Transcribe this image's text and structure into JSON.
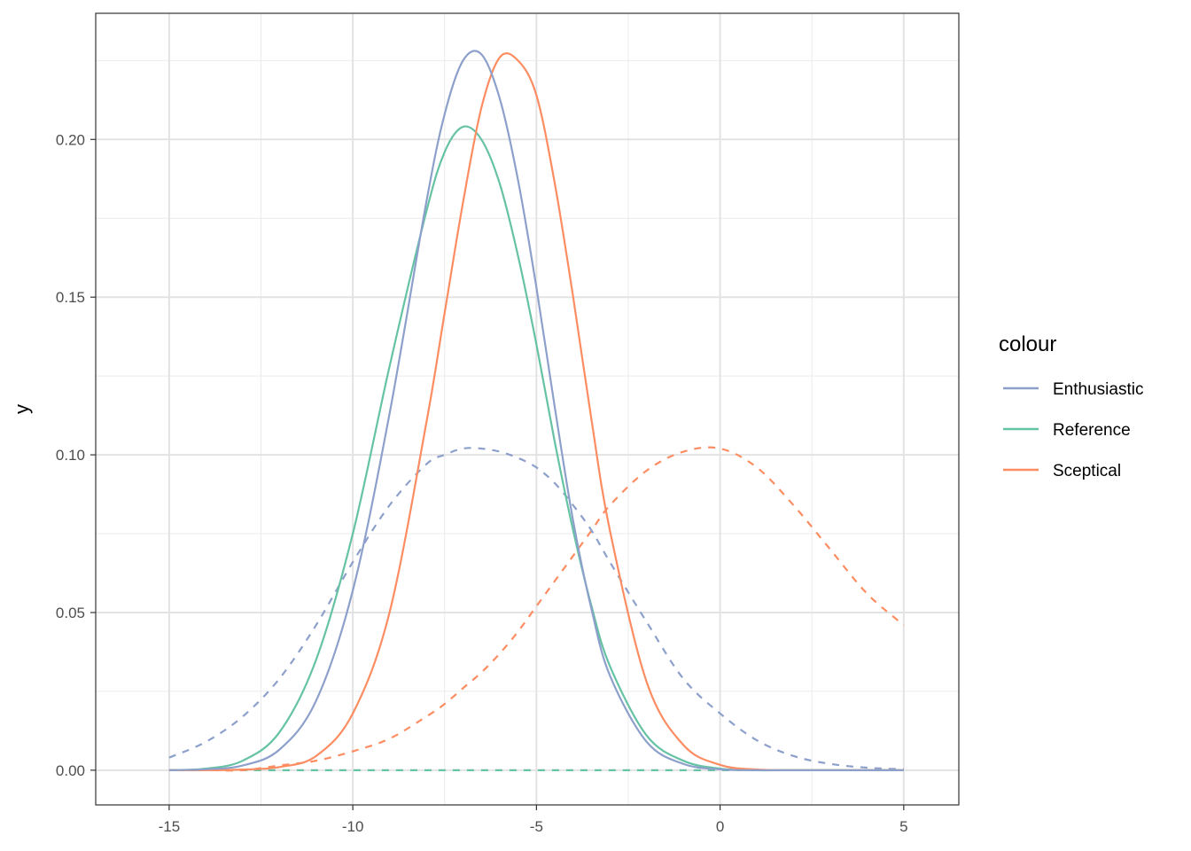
{
  "chart_data": {
    "type": "line",
    "title": "",
    "xlabel": "",
    "ylabel": "y",
    "xlim": [
      -17,
      6.5
    ],
    "ylim": [
      -0.011,
      0.24
    ],
    "x_ticks": [
      -15,
      -10,
      -5,
      0,
      5
    ],
    "x_tick_labels": [
      "-15",
      "-10",
      "-5",
      "0",
      "5"
    ],
    "y_ticks": [
      0,
      0.05,
      0.1,
      0.15,
      0.2
    ],
    "y_tick_labels": [
      "0.00",
      "0.05",
      "0.10",
      "0.15",
      "0.20"
    ],
    "grid": true,
    "legend": {
      "title": "colour",
      "position": "right",
      "entries": [
        {
          "label": "Enthusiastic",
          "color": "#8DA0CB"
        },
        {
          "label": "Reference",
          "color": "#66C2A5"
        },
        {
          "label": "Sceptical",
          "color": "#FC8D62"
        }
      ]
    },
    "x": [
      -15,
      -14,
      -13,
      -12,
      -11,
      -10,
      -9,
      -8,
      -7.5,
      -7,
      -6.5,
      -6,
      -5.5,
      -5,
      -4.5,
      -4,
      -3.5,
      -3,
      -2,
      -1,
      0,
      1,
      2,
      3,
      4,
      5
    ],
    "series": [
      {
        "legend_label": "Enthusiastic",
        "linetype": "solid",
        "color": "#8DA0CB",
        "values": [
          0,
          0.0003,
          0.0015,
          0.0065,
          0.022,
          0.057,
          0.113,
          0.18,
          0.208,
          0.225,
          0.227,
          0.213,
          0.187,
          0.153,
          0.115,
          0.079,
          0.051,
          0.03,
          0.009,
          0.002,
          0.0003,
          0,
          0,
          0,
          0,
          0
        ]
      },
      {
        "legend_label": "Reference",
        "linetype": "solid",
        "color": "#66C2A5",
        "values": [
          0,
          0.0005,
          0.003,
          0.012,
          0.035,
          0.075,
          0.128,
          0.177,
          0.196,
          0.204,
          0.2,
          0.186,
          0.163,
          0.135,
          0.104,
          0.076,
          0.052,
          0.033,
          0.011,
          0.003,
          0.0005,
          0,
          0,
          0,
          0,
          0
        ]
      },
      {
        "legend_label": "Sceptical",
        "linetype": "solid",
        "color": "#FC8D62",
        "values": [
          0,
          0,
          0.0002,
          0.001,
          0.0045,
          0.018,
          0.05,
          0.11,
          0.145,
          0.18,
          0.21,
          0.226,
          0.225,
          0.214,
          0.186,
          0.15,
          0.111,
          0.076,
          0.028,
          0.008,
          0.0017,
          0.0002,
          0,
          0,
          0,
          0
        ]
      },
      {
        "legend_label": "Enthusiastic",
        "linetype": "dashed",
        "color": "#8DA0CB",
        "values": [
          0.004,
          0.009,
          0.017,
          0.029,
          0.046,
          0.066,
          0.084,
          0.097,
          0.1,
          0.102,
          0.102,
          0.101,
          0.099,
          0.096,
          0.091,
          0.084,
          0.076,
          0.066,
          0.047,
          0.029,
          0.018,
          0.0095,
          0.0045,
          0.002,
          0.0008,
          0.0003
        ]
      },
      {
        "legend_label": "Reference",
        "linetype": "dashed",
        "color": "#66C2A5",
        "values": [
          0,
          0,
          0,
          0,
          0,
          0,
          0,
          0,
          0,
          0,
          0,
          0,
          0,
          0,
          0,
          0,
          0,
          0,
          0,
          0,
          0,
          0,
          0,
          0,
          0,
          0
        ]
      },
      {
        "legend_label": "Sceptical",
        "linetype": "dashed",
        "color": "#FC8D62",
        "values": [
          0,
          0,
          0,
          0.0015,
          0.003,
          0.006,
          0.01,
          0.017,
          0.021,
          0.026,
          0.031,
          0.037,
          0.044,
          0.052,
          0.06,
          0.068,
          0.076,
          0.084,
          0.095,
          0.101,
          0.102,
          0.096,
          0.084,
          0.07,
          0.056,
          0.046
        ]
      }
    ]
  }
}
